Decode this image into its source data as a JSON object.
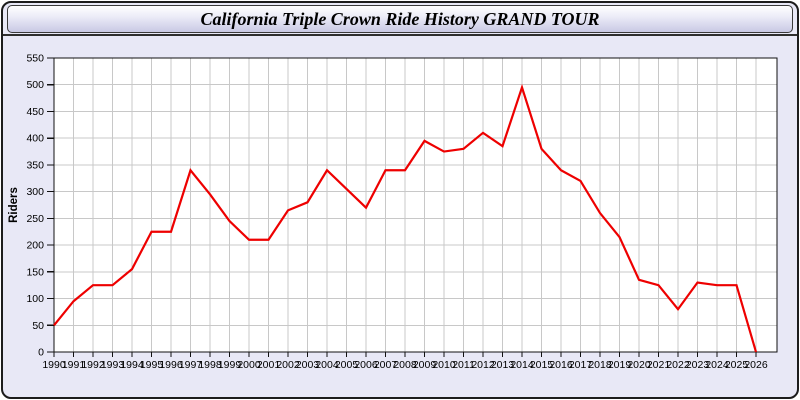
{
  "header": {
    "title": "California Triple Crown Ride History GRAND TOUR"
  },
  "chart_data": {
    "type": "line",
    "title": "California Triple Crown Ride History GRAND TOUR",
    "xlabel": "",
    "ylabel": "Riders",
    "x": [
      1990,
      1991,
      1992,
      1993,
      1994,
      1995,
      1996,
      1997,
      1998,
      1999,
      2000,
      2001,
      2002,
      2003,
      2004,
      2005,
      2006,
      2007,
      2008,
      2009,
      2010,
      2011,
      2012,
      2013,
      2014,
      2015,
      2016,
      2017,
      2018,
      2019,
      2020,
      2021,
      2022,
      2023,
      2024,
      2025,
      2026
    ],
    "values": [
      50,
      95,
      125,
      125,
      155,
      225,
      225,
      340,
      295,
      245,
      210,
      210,
      265,
      280,
      340,
      305,
      270,
      340,
      340,
      395,
      375,
      380,
      410,
      385,
      495,
      380,
      340,
      320,
      260,
      215,
      135,
      125,
      80,
      130,
      125,
      125,
      0
    ],
    "ylim": [
      0,
      550
    ],
    "ytick_step": 50,
    "grid": true,
    "legend": false,
    "line_color": "#ee0000"
  },
  "colors": {
    "page_background": "#ffffff",
    "panel_background": "#e8e8f6",
    "panel_border": "#1c1c1c",
    "header_gradient_top": "#ffffff",
    "header_gradient_bottom": "#c9c9e4",
    "plot_background": "#ffffff",
    "grid_line": "#c8c8c8",
    "axis": "#111111",
    "data_line": "#ee0000"
  }
}
